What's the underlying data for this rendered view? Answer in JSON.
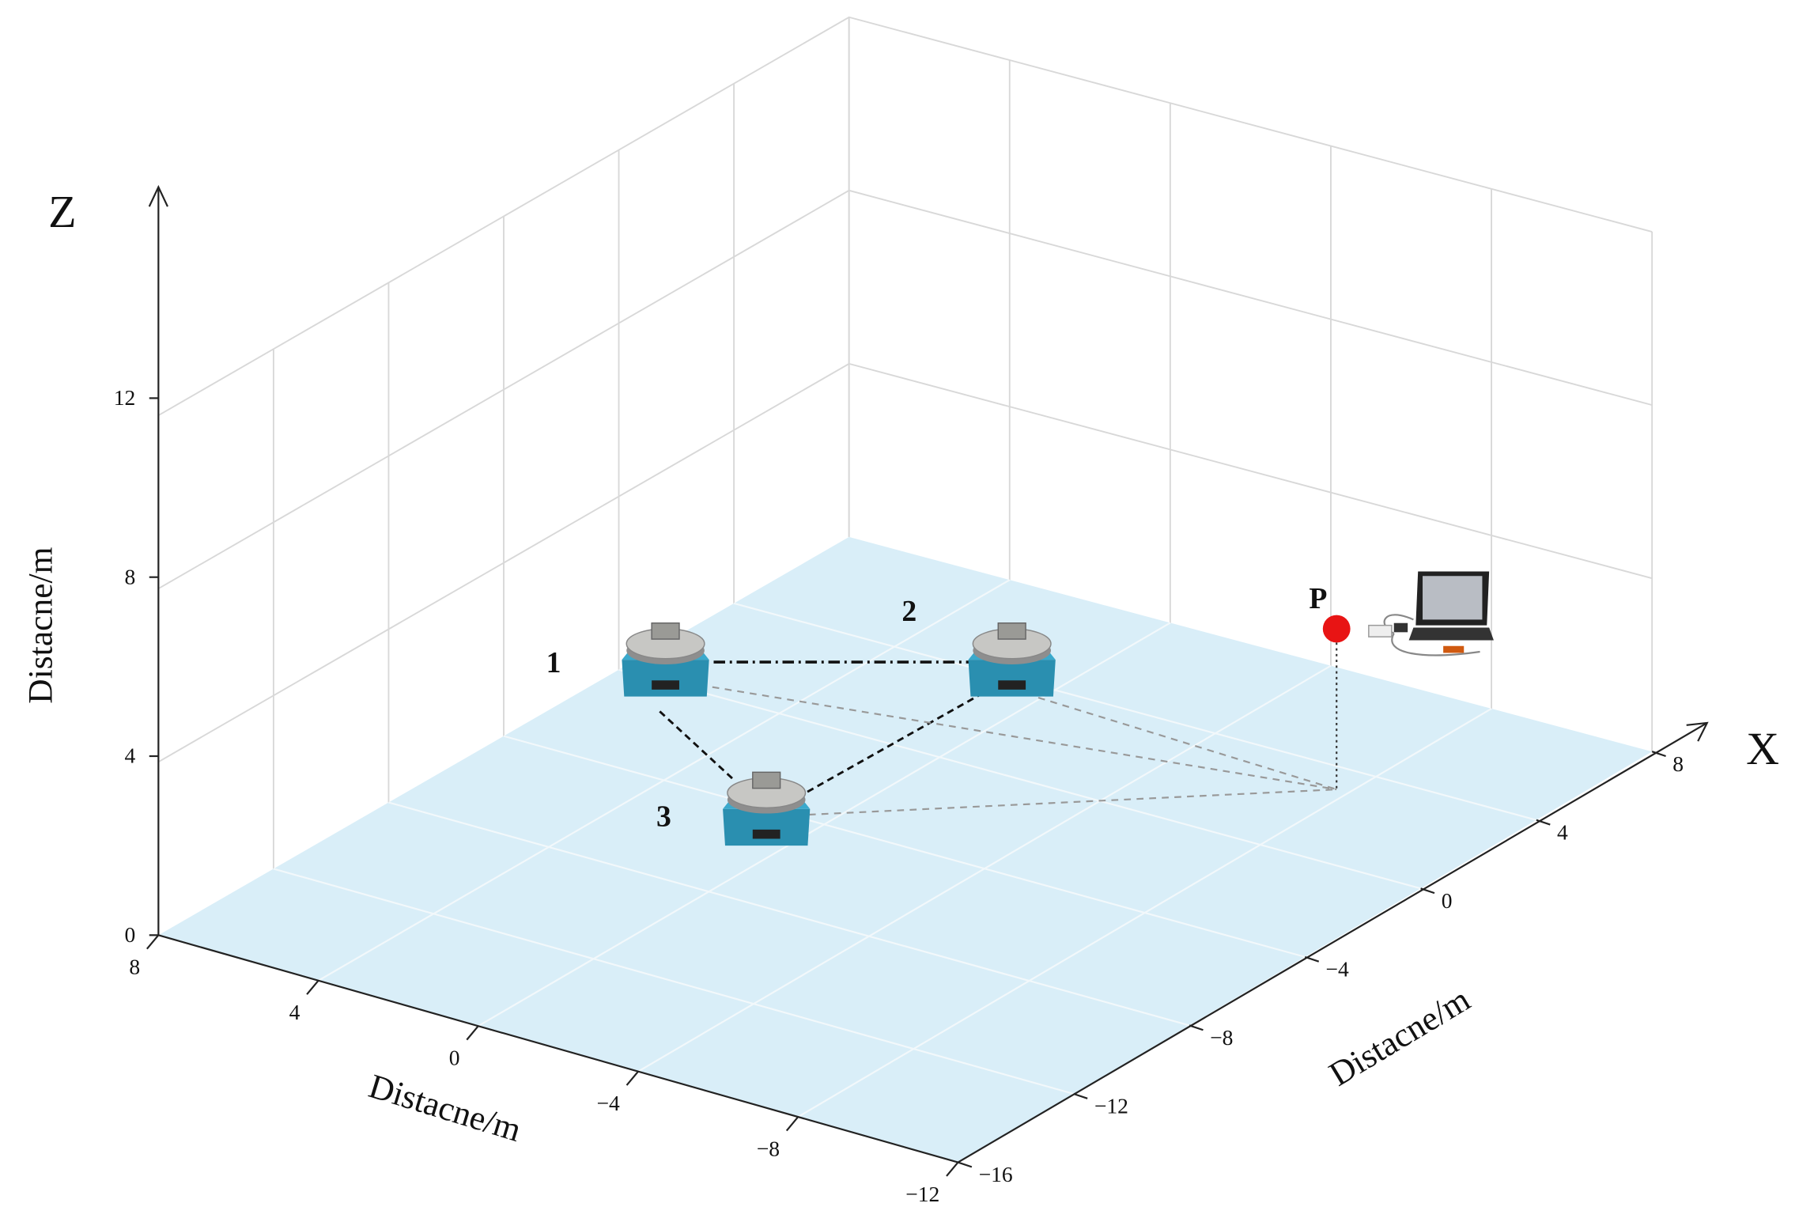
{
  "axes": {
    "z": {
      "name": "Z",
      "title": "Distacne/m",
      "ticks": [
        "0",
        "4",
        "8",
        "12"
      ]
    },
    "x": {
      "name": "X",
      "title": "Distacne/m",
      "ticks": [
        "−16",
        "−12",
        "−8",
        "−4",
        "0",
        "4",
        "8"
      ]
    },
    "y": {
      "title": "Distacne/m",
      "ticks": [
        "8",
        "4",
        "0",
        "−4",
        "−8",
        "−12"
      ]
    }
  },
  "nodes": [
    {
      "label": "1"
    },
    {
      "label": "2"
    },
    {
      "label": "3"
    },
    {
      "label": "P"
    }
  ]
}
